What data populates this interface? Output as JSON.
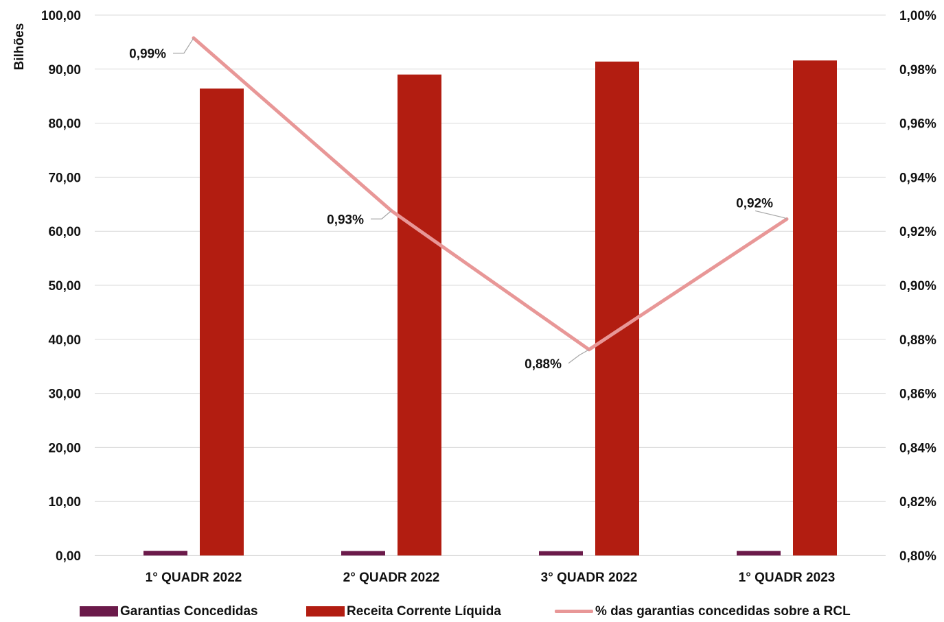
{
  "chart_data": {
    "type": "bar",
    "categories": [
      "1° QUADR 2022",
      "2° QUADR 2022",
      "3° QUADR 2022",
      "1° QUADR 2023"
    ],
    "ylabel": "Bilhões",
    "ylim": [
      0,
      100
    ],
    "y2lim": [
      0.8,
      1.0
    ],
    "yticks": [
      "0,00",
      "10,00",
      "20,00",
      "30,00",
      "40,00",
      "50,00",
      "60,00",
      "70,00",
      "80,00",
      "90,00",
      "100,00"
    ],
    "y2ticks": [
      "0,80%",
      "0,82%",
      "0,84%",
      "0,86%",
      "0,88%",
      "0,90%",
      "0,92%",
      "0,94%",
      "0,96%",
      "0,98%",
      "1,00%"
    ],
    "grid": true,
    "legend_position": "bottom",
    "series": [
      {
        "name": "Garantias Concedidas",
        "type": "bar",
        "axis": "left",
        "color": "#6b1a4a",
        "values": [
          0.86,
          0.83,
          0.8,
          0.85
        ]
      },
      {
        "name": "Receita Corrente Líquida",
        "type": "bar",
        "axis": "left",
        "color": "#b21d11",
        "values": [
          86.4,
          89.0,
          91.4,
          91.6
        ]
      },
      {
        "name": "% das garantias concedidas sobre a RCL",
        "type": "line",
        "axis": "right",
        "color": "#e89797",
        "values": [
          0.9915,
          0.9276,
          0.8762,
          0.9245
        ],
        "labels": [
          "0,99%",
          "0,93%",
          "0,88%",
          "0,92%"
        ]
      }
    ]
  }
}
